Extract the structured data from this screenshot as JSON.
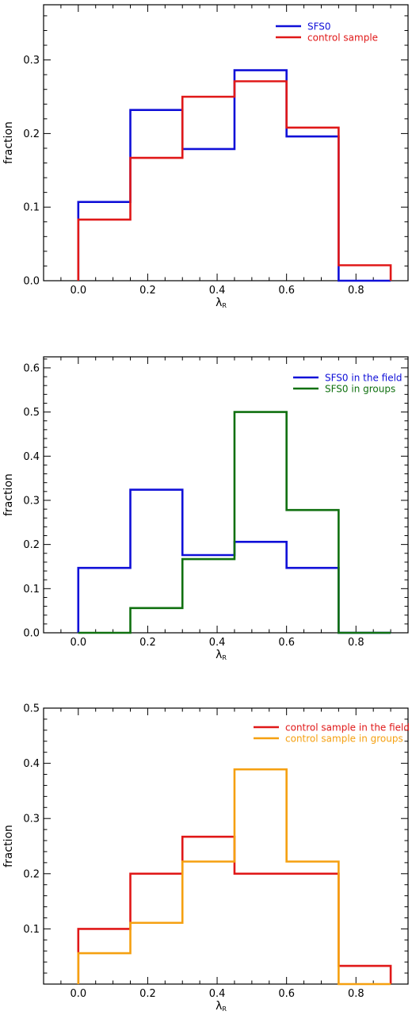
{
  "chart_data": [
    {
      "type": "histogram",
      "xlabel": "λ",
      "xlabel_sub": "R",
      "ylabel": "fraction",
      "xlim": [
        -0.1,
        0.95
      ],
      "ylim": [
        0,
        0.375
      ],
      "xticks": [
        0.0,
        0.2,
        0.4,
        0.6,
        0.8
      ],
      "xtick_labels": [
        "0.0",
        "0.2",
        "0.4",
        "0.6",
        "0.8"
      ],
      "xminor": 0.05,
      "yticks": [
        0.0,
        0.1,
        0.2,
        0.3
      ],
      "ytick_labels": [
        "0.0",
        "0.1",
        "0.2",
        "0.3"
      ],
      "yminor": 0.02,
      "bin_edges": [
        0.0,
        0.15,
        0.3,
        0.45,
        0.6,
        0.75,
        0.9
      ],
      "legend_position": "top-right",
      "series": [
        {
          "name": "SFS0",
          "color": "#1010d8",
          "values": [
            0.107,
            0.232,
            0.179,
            0.286,
            0.196,
            0.0
          ]
        },
        {
          "name": "control sample",
          "color": "#e01818",
          "values": [
            0.083,
            0.167,
            0.25,
            0.271,
            0.208,
            0.021
          ]
        }
      ]
    },
    {
      "type": "histogram",
      "xlabel": "λ",
      "xlabel_sub": "R",
      "ylabel": "fraction",
      "xlim": [
        -0.1,
        0.95
      ],
      "ylim": [
        0,
        0.625
      ],
      "xticks": [
        0.0,
        0.2,
        0.4,
        0.6,
        0.8
      ],
      "xtick_labels": [
        "0.0",
        "0.2",
        "0.4",
        "0.6",
        "0.8"
      ],
      "xminor": 0.05,
      "yticks": [
        0.0,
        0.1,
        0.2,
        0.3,
        0.4,
        0.5,
        0.6
      ],
      "ytick_labels": [
        "0.0",
        "0.1",
        "0.2",
        "0.3",
        "0.4",
        "0.5",
        "0.6"
      ],
      "yminor": 0.02,
      "bin_edges": [
        0.0,
        0.15,
        0.3,
        0.45,
        0.6,
        0.75,
        0.9
      ],
      "legend_position": "top-right",
      "series": [
        {
          "name": "SFS0 in the field",
          "color": "#1010d8",
          "values": [
            0.147,
            0.324,
            0.176,
            0.206,
            0.147,
            0.0
          ]
        },
        {
          "name": "SFS0 in groups",
          "color": "#107010",
          "values": [
            0.0,
            0.056,
            0.167,
            0.5,
            0.278,
            0.0
          ]
        }
      ]
    },
    {
      "type": "histogram",
      "xlabel": "λ",
      "xlabel_sub": "R",
      "ylabel": "fraction",
      "xlim": [
        -0.1,
        0.95
      ],
      "ylim": [
        0.0,
        0.5
      ],
      "xticks": [
        0.0,
        0.2,
        0.4,
        0.6,
        0.8
      ],
      "xtick_labels": [
        "0.0",
        "0.2",
        "0.4",
        "0.6",
        "0.8"
      ],
      "xminor": 0.05,
      "yticks": [
        0.1,
        0.2,
        0.3,
        0.4,
        0.5
      ],
      "ytick_labels": [
        "0.1",
        "0.2",
        "0.3",
        "0.4",
        "0.5"
      ],
      "yminor": 0.02,
      "bin_edges": [
        0.0,
        0.15,
        0.3,
        0.45,
        0.6,
        0.75,
        0.9
      ],
      "legend_position": "top-right",
      "series": [
        {
          "name": "control sample in the field",
          "color": "#e01818",
          "values": [
            0.1,
            0.2,
            0.267,
            0.2,
            0.2,
            0.033
          ]
        },
        {
          "name": "control sample in groups",
          "color": "#f5a010",
          "values": [
            0.056,
            0.111,
            0.222,
            0.389,
            0.222,
            0.0
          ]
        }
      ]
    }
  ]
}
